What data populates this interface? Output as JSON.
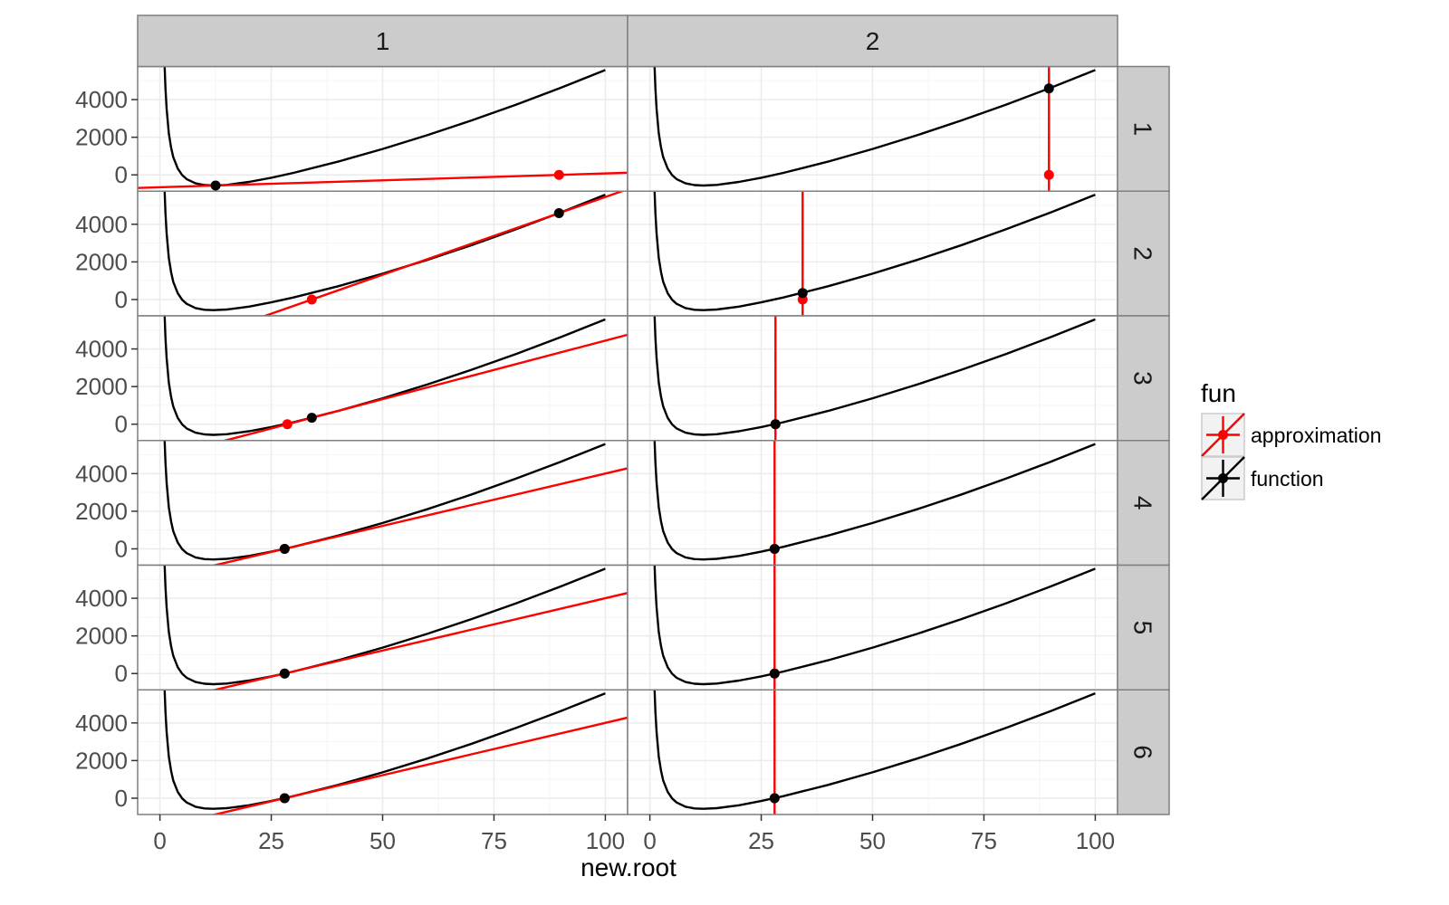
{
  "chart_data": {
    "type": "line",
    "facet_cols": [
      "1",
      "2"
    ],
    "facet_rows": [
      "1",
      "2",
      "3",
      "4",
      "5",
      "6"
    ],
    "xlabel": "new.root",
    "ylabel": "",
    "xlim": [
      -5,
      105
    ],
    "ylim": [
      -867,
      5759
    ],
    "xticks": [
      0,
      25,
      50,
      75,
      100
    ],
    "xtick_labels": [
      "0",
      "25",
      "50",
      "75",
      "100"
    ],
    "yticks": [
      0,
      2000,
      4000
    ],
    "ytick_labels": [
      "0",
      "2000",
      "4000"
    ],
    "grid": true,
    "legend": {
      "title": "fun",
      "position": "right",
      "entries": [
        {
          "name": "approximation",
          "color": "#ff0000"
        },
        {
          "name": "function",
          "color": "#000000"
        }
      ]
    },
    "function_curve": {
      "x": [
        0.8,
        1,
        1.25,
        1.5,
        2,
        2.5,
        3,
        4,
        5,
        6,
        8,
        10,
        12,
        15,
        20,
        25,
        30,
        40,
        50,
        60,
        70,
        80,
        90,
        100
      ],
      "y": [
        8112,
        6137,
        4600,
        3515,
        2216,
        1460,
        943,
        332,
        -14,
        -226,
        -452,
        -543,
        -566,
        -531,
        -374,
        -152,
        108,
        704,
        1375,
        2107,
        2895,
        3736,
        4629,
        5572
      ]
    },
    "panels": [
      {
        "col": "1",
        "row": "1",
        "function_point": [
          12.5,
          -565
        ],
        "approximation_point": [
          89.6,
          0
        ],
        "approximation_line": {
          "through": [
            89.6,
            0
          ],
          "slope": 7.33
        }
      },
      {
        "col": "1",
        "row": "2",
        "function_point": [
          89.6,
          4592
        ],
        "approximation_point": [
          34.1,
          0
        ],
        "approximation_line": {
          "through": [
            34.1,
            0
          ],
          "slope": 82.7
        }
      },
      {
        "col": "1",
        "row": "3",
        "function_point": [
          34.1,
          342
        ],
        "approximation_point": [
          28.6,
          0
        ],
        "approximation_line": {
          "through": [
            28.6,
            0
          ],
          "slope": 62.2
        }
      },
      {
        "col": "1",
        "row": "4",
        "function_point": [
          28.0,
          0
        ],
        "approximation_point": [
          28.0,
          0
        ],
        "approximation_line": {
          "through": [
            28.0,
            0
          ],
          "slope": 55.6
        }
      },
      {
        "col": "1",
        "row": "5",
        "function_point": [
          28.0,
          0
        ],
        "approximation_point": [
          28.0,
          0
        ],
        "approximation_line": {
          "through": [
            28.0,
            0
          ],
          "slope": 55.6
        }
      },
      {
        "col": "1",
        "row": "6",
        "function_point": [
          28.0,
          0
        ],
        "approximation_point": [
          28.0,
          0
        ],
        "approximation_line": {
          "through": [
            28.0,
            0
          ],
          "slope": 55.6
        }
      },
      {
        "col": "2",
        "row": "1",
        "function_point": [
          89.6,
          4592
        ],
        "approximation_point": [
          89.6,
          0
        ],
        "approximation_line": {
          "vertical": 89.6
        }
      },
      {
        "col": "2",
        "row": "2",
        "function_point": [
          34.3,
          350
        ],
        "approximation_point": [
          34.3,
          0
        ],
        "approximation_line": {
          "vertical": 34.3
        }
      },
      {
        "col": "2",
        "row": "3",
        "function_point": [
          28.2,
          0
        ],
        "approximation_point": [
          28.2,
          0
        ],
        "approximation_line": {
          "vertical": 28.2
        }
      },
      {
        "col": "2",
        "row": "4",
        "function_point": [
          28.0,
          0
        ],
        "approximation_point": [
          28.0,
          0
        ],
        "approximation_line": {
          "vertical": 28.0
        }
      },
      {
        "col": "2",
        "row": "5",
        "function_point": [
          28.0,
          0
        ],
        "approximation_point": [
          28.0,
          0
        ],
        "approximation_line": {
          "vertical": 28.0
        }
      },
      {
        "col": "2",
        "row": "6",
        "function_point": [
          28.0,
          0
        ],
        "approximation_point": [
          28.0,
          0
        ],
        "approximation_line": {
          "vertical": 28.0
        }
      }
    ]
  }
}
